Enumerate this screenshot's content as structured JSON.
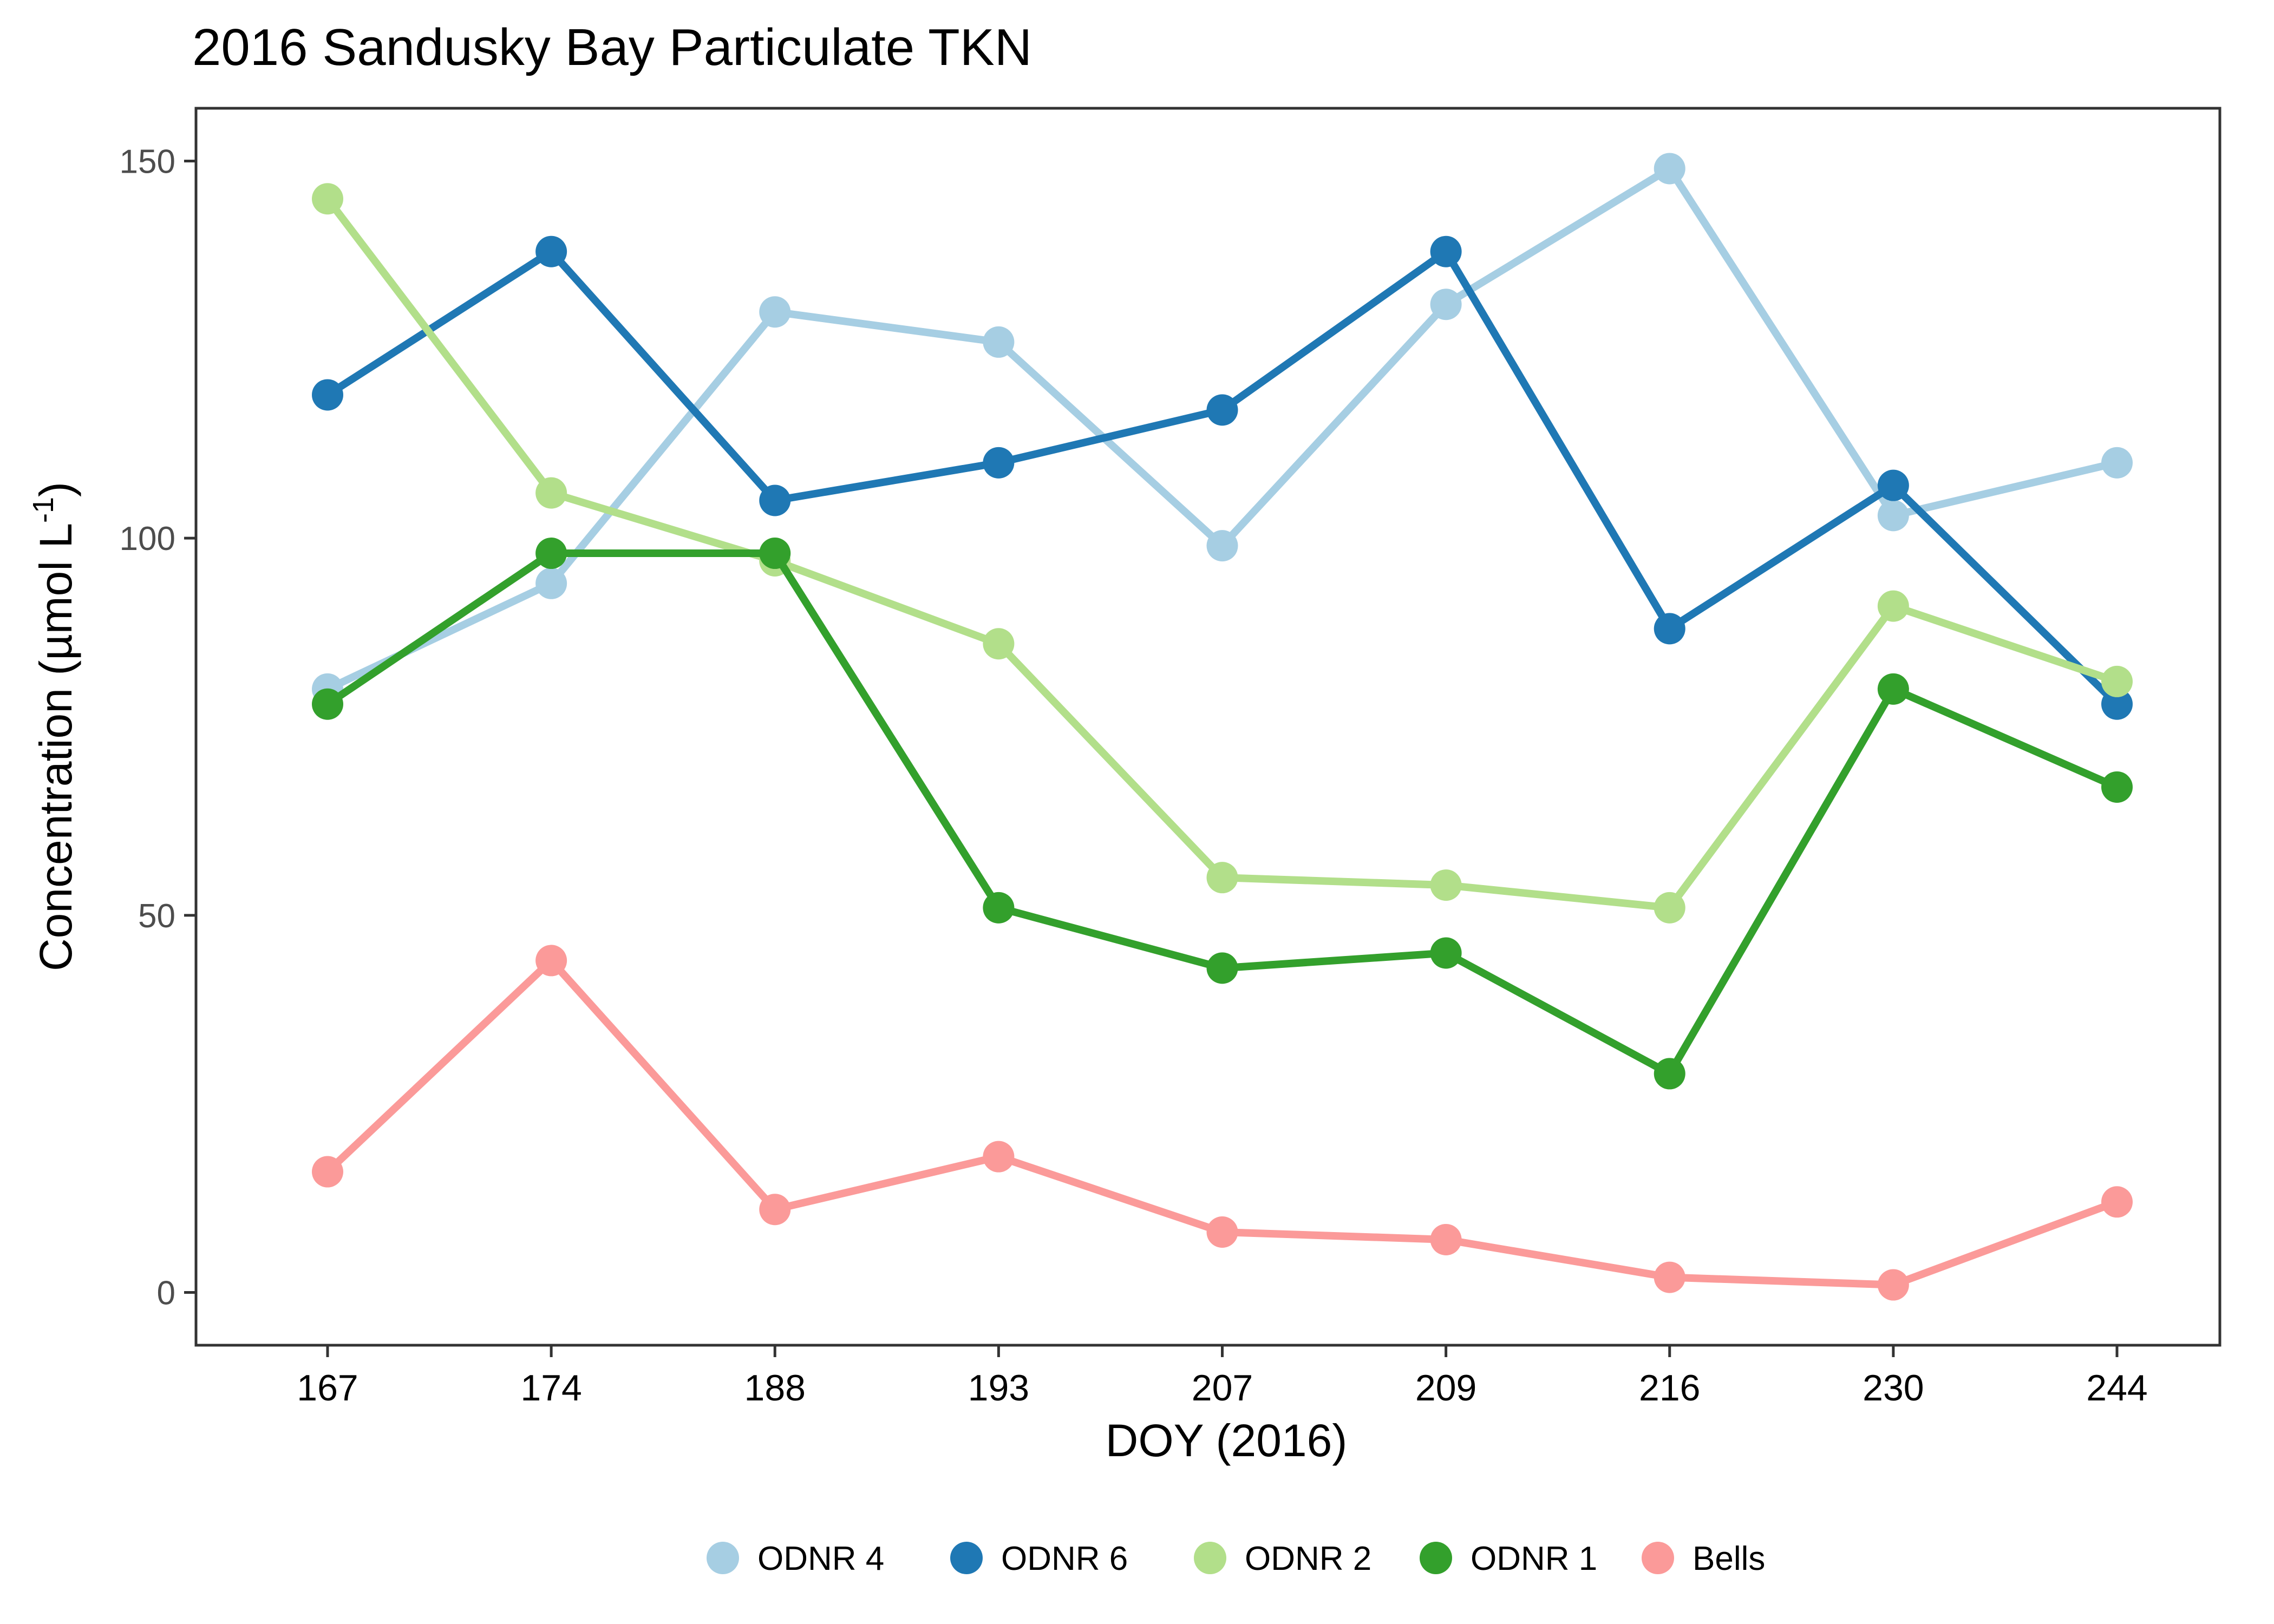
{
  "chart_data": {
    "type": "line",
    "title": "2016 Sandusky Bay Particulate TKN",
    "xlabel": "DOY (2016)",
    "ylabel": {
      "prefix": "Concentration (µmol L",
      "superscript": "-1",
      "suffix": ")"
    },
    "categories": [
      "167",
      "174",
      "188",
      "193",
      "207",
      "209",
      "216",
      "230",
      "244"
    ],
    "ylim": [
      -7,
      157
    ],
    "yticks": [
      0,
      50,
      100,
      150
    ],
    "grid": false,
    "legend_position": "bottom",
    "series": [
      {
        "name": "ODNR 4",
        "color": "#a6cee3",
        "values": [
          80,
          94,
          130,
          126,
          99,
          131,
          149,
          103,
          110
        ]
      },
      {
        "name": "ODNR 6",
        "color": "#1f78b4",
        "values": [
          119,
          138,
          105,
          110,
          117,
          138,
          88,
          107,
          78
        ]
      },
      {
        "name": "ODNR 2",
        "color": "#b2df8a",
        "values": [
          145,
          106,
          97,
          86,
          55,
          54,
          51,
          91,
          81
        ]
      },
      {
        "name": "ODNR 1",
        "color": "#33a02c",
        "values": [
          78,
          98,
          98,
          51,
          43,
          45,
          29,
          80,
          67
        ]
      },
      {
        "name": "Bells",
        "color": "#fb9a99",
        "values": [
          16,
          44,
          11,
          18,
          8,
          7,
          2,
          1,
          12
        ]
      }
    ]
  }
}
